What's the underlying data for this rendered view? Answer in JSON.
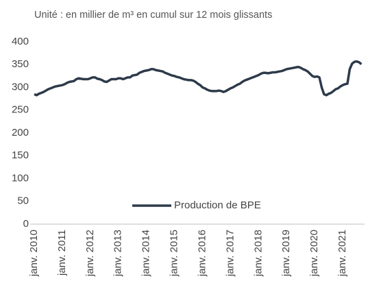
{
  "chart_data": {
    "type": "line",
    "title": "Unité : en millier de m³ en cumul sur 12 mois glissants",
    "categories": [
      "janv. 2010",
      null,
      null,
      null,
      null,
      null,
      null,
      null,
      null,
      null,
      null,
      null,
      "janv. 2011",
      null,
      null,
      null,
      null,
      null,
      null,
      null,
      null,
      null,
      null,
      null,
      "janv. 2012",
      null,
      null,
      null,
      null,
      null,
      null,
      null,
      null,
      null,
      null,
      null,
      "janv. 2013",
      null,
      null,
      null,
      null,
      null,
      null,
      null,
      null,
      null,
      null,
      null,
      "janv. 2014",
      null,
      null,
      null,
      null,
      null,
      null,
      null,
      null,
      null,
      null,
      null,
      "janv. 2015",
      null,
      null,
      null,
      null,
      null,
      null,
      null,
      null,
      null,
      null,
      null,
      "janv. 2016",
      null,
      null,
      null,
      null,
      null,
      null,
      null,
      null,
      null,
      null,
      null,
      "janv. 2017",
      null,
      null,
      null,
      null,
      null,
      null,
      null,
      null,
      null,
      null,
      null,
      "janv. 2018",
      null,
      null,
      null,
      null,
      null,
      null,
      null,
      null,
      null,
      null,
      null,
      "janv. 2019",
      null,
      null,
      null,
      null,
      null,
      null,
      null,
      null,
      null,
      null,
      null,
      "janv. 2020",
      null,
      null,
      null,
      null,
      null,
      null,
      null,
      null,
      null,
      null,
      null,
      "janv. 2021",
      null,
      null,
      null,
      null,
      null,
      null,
      null,
      null
    ],
    "series": [
      {
        "name": "Production de BPE",
        "color": "#2d3a4a",
        "values": [
          285,
          283,
          286,
          288,
          290,
          293,
          296,
          298,
          300,
          302,
          303,
          304,
          305,
          307,
          310,
          312,
          313,
          314,
          318,
          320,
          319,
          318,
          318,
          318,
          320,
          322,
          322,
          319,
          318,
          316,
          313,
          312,
          315,
          318,
          318,
          318,
          320,
          320,
          318,
          320,
          322,
          322,
          326,
          327,
          328,
          332,
          334,
          336,
          337,
          338,
          340,
          340,
          338,
          337,
          336,
          335,
          332,
          330,
          328,
          326,
          325,
          323,
          322,
          320,
          318,
          317,
          316,
          316,
          315,
          312,
          308,
          305,
          300,
          298,
          295,
          293,
          292,
          292,
          292,
          293,
          292,
          290,
          292,
          295,
          298,
          300,
          303,
          306,
          308,
          312,
          315,
          317,
          319,
          321,
          323,
          325,
          327,
          330,
          332,
          332,
          331,
          332,
          333,
          333,
          334,
          335,
          336,
          338,
          340,
          341,
          342,
          343,
          344,
          345,
          343,
          340,
          338,
          335,
          330,
          325,
          323,
          324,
          322,
          300,
          285,
          283,
          286,
          288,
          292,
          296,
          298,
          302,
          305,
          307,
          308,
          340,
          352,
          356,
          357,
          355,
          351
        ]
      }
    ],
    "ylim": [
      0,
      400
    ],
    "yticks": [
      0,
      50,
      100,
      150,
      200,
      250,
      300,
      350,
      400
    ],
    "legend": "bottom-center"
  }
}
